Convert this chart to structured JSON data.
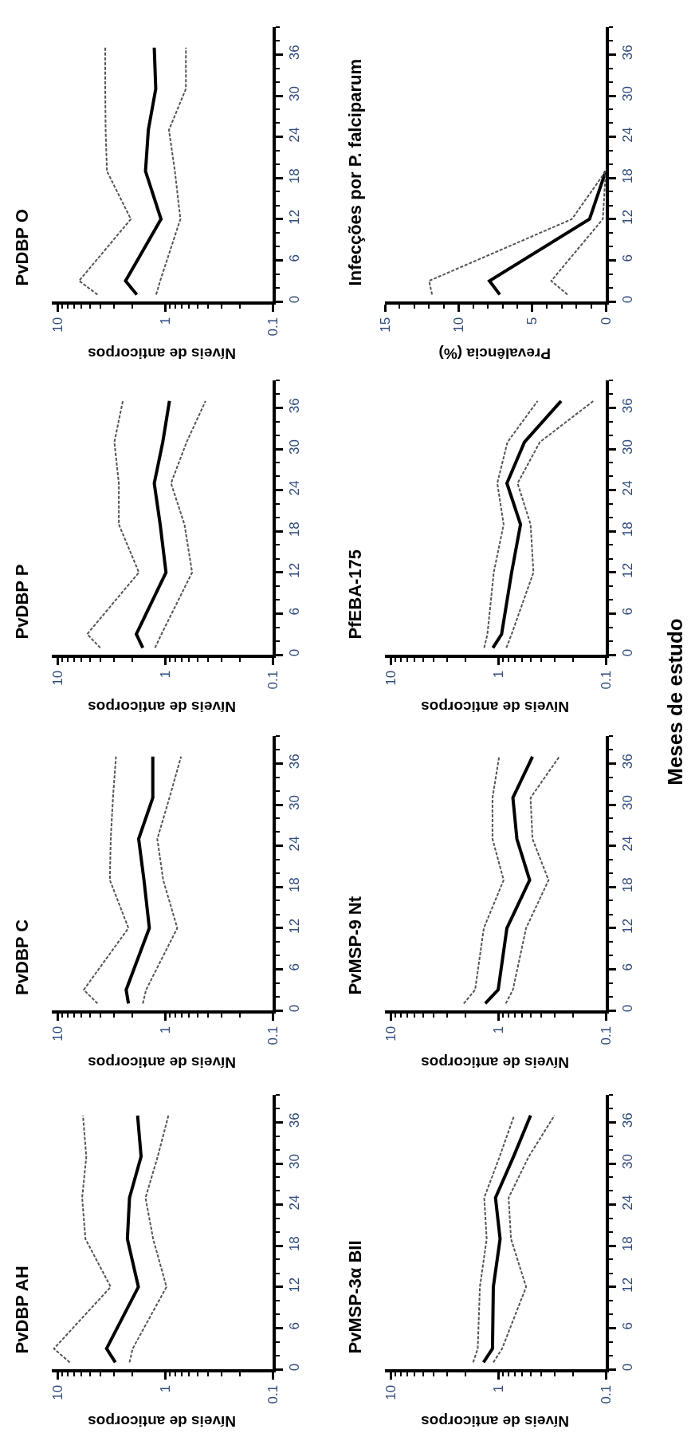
{
  "chart_data": [
    {
      "type": "line",
      "orientation": "horizontal",
      "title": "PvDBP AH",
      "xlabel": "Níveis de anticorpos",
      "x": [
        1,
        3,
        12,
        19,
        25,
        31,
        37
      ],
      "series": [
        {
          "color": "#000000",
          "line_style": "solid",
          "values": [
            2.9,
            3.5,
            1.77,
            2.24,
            2.14,
            1.67,
            1.8
          ]
        },
        {
          "color": "#555555",
          "line_style": "dashed",
          "values": [
            7.7,
            10.8,
            3.2,
            5.5,
            5.9,
            5.4,
            5.8
          ]
        },
        {
          "color": "#555555",
          "line_style": "dashed",
          "values": [
            2.14,
            2.0,
            0.97,
            1.29,
            1.52,
            1.17,
            0.93
          ]
        }
      ],
      "ylim": [
        0,
        40
      ],
      "yticks": [
        0,
        6,
        12,
        18,
        24,
        30,
        36
      ],
      "xlim": [
        11.3,
        0.1
      ],
      "xticks": [
        10,
        1,
        0.1
      ],
      "log": "x"
    },
    {
      "type": "line",
      "orientation": "horizontal",
      "title": "PvDBP C",
      "xlabel": "Níveis de anticorpos",
      "x": [
        1,
        3,
        12,
        19,
        25,
        31,
        37
      ],
      "series": [
        {
          "color": "#000000",
          "line_style": "solid",
          "values": [
            2.19,
            2.3,
            1.4,
            1.57,
            1.76,
            1.3,
            1.3
          ]
        },
        {
          "color": "#555555",
          "line_style": "dashed",
          "values": [
            4.25,
            5.7,
            2.19,
            3.26,
            3.2,
            3.05,
            2.86
          ]
        },
        {
          "color": "#555555",
          "line_style": "dashed",
          "values": [
            1.61,
            1.5,
            0.77,
            1.04,
            1.18,
            0.91,
            0.71
          ]
        }
      ],
      "ylim": [
        0,
        40
      ],
      "yticks": [
        0,
        6,
        12,
        18,
        24,
        30,
        36
      ],
      "xlim": [
        11.3,
        0.1
      ],
      "xticks": [
        10,
        1,
        0.1
      ],
      "log": "x"
    },
    {
      "type": "line",
      "orientation": "horizontal",
      "title": "PvDBP P",
      "xlabel": "Níveis de anticorpos",
      "x": [
        1,
        3,
        12,
        19,
        25,
        31,
        37
      ],
      "series": [
        {
          "color": "#000000",
          "line_style": "solid",
          "values": [
            1.61,
            1.85,
            0.98,
            1.11,
            1.26,
            1.05,
            0.91
          ]
        },
        {
          "color": "#555555",
          "line_style": "dashed",
          "values": [
            4.0,
            5.3,
            1.75,
            2.69,
            2.69,
            2.96,
            2.47
          ]
        },
        {
          "color": "#555555",
          "line_style": "dashed",
          "values": [
            1.24,
            1.08,
            0.56,
            0.66,
            0.88,
            0.63,
            0.42
          ]
        }
      ],
      "ylim": [
        0,
        40
      ],
      "yticks": [
        0,
        6,
        12,
        18,
        24,
        30,
        36
      ],
      "xlim": [
        11.3,
        0.1
      ],
      "xticks": [
        10,
        1,
        0.1
      ],
      "log": "x"
    },
    {
      "type": "line",
      "orientation": "horizontal",
      "title": "PvDBP O",
      "xlabel": "Níveis de anticorpos",
      "x": [
        1,
        3,
        12,
        19,
        25,
        31,
        37
      ],
      "series": [
        {
          "color": "#000000",
          "line_style": "solid",
          "values": [
            1.83,
            2.33,
            1.09,
            1.52,
            1.43,
            1.22,
            1.26
          ]
        },
        {
          "color": "#555555",
          "line_style": "dashed",
          "values": [
            4.25,
            6.3,
            2.08,
            3.47,
            3.57,
            3.6,
            3.6
          ]
        },
        {
          "color": "#555555",
          "line_style": "dashed",
          "values": [
            1.21,
            1.11,
            0.72,
            0.81,
            0.92,
            0.64,
            0.64
          ]
        }
      ],
      "ylim": [
        0,
        40
      ],
      "yticks": [
        0,
        6,
        12,
        18,
        24,
        30,
        36
      ],
      "xlim": [
        11.3,
        0.1
      ],
      "xticks": [
        10,
        1,
        0.1
      ],
      "log": "x"
    },
    {
      "type": "line",
      "orientation": "horizontal",
      "title": "PvMSP-3α BII",
      "xlabel": "Níveis de anticorpos",
      "annotations": [
        "Meses de estudo"
      ],
      "x": [
        1,
        3,
        12,
        19,
        25,
        31,
        37
      ],
      "series": [
        {
          "color": "#000000",
          "line_style": "solid",
          "values": [
            1.37,
            1.13,
            1.11,
            0.96,
            1.06,
            0.72,
            0.5
          ]
        },
        {
          "color": "#555555",
          "line_style": "dashed",
          "values": [
            1.71,
            1.55,
            1.48,
            1.28,
            1.35,
            0.97,
            0.71
          ]
        },
        {
          "color": "#555555",
          "line_style": "dashed",
          "values": [
            1.11,
            0.92,
            0.55,
            0.76,
            0.8,
            0.52,
            0.3
          ]
        }
      ],
      "ylim": [
        0,
        40
      ],
      "yticks": [
        0,
        6,
        12,
        18,
        24,
        30,
        36
      ],
      "xlim": [
        11.3,
        0.1
      ],
      "xticks": [
        10,
        1,
        0.1
      ],
      "log": "x"
    },
    {
      "type": "line",
      "orientation": "horizontal",
      "title": "PvMSP-9 Nt",
      "xlabel": "Níveis de anticorpos",
      "x": [
        1,
        3,
        12,
        19,
        25,
        31,
        37
      ],
      "series": [
        {
          "color": "#000000",
          "line_style": "solid",
          "values": [
            1.32,
            1.0,
            0.83,
            0.51,
            0.67,
            0.73,
            0.48
          ]
        },
        {
          "color": "#555555",
          "line_style": "dashed",
          "values": [
            2.09,
            1.64,
            1.36,
            0.89,
            1.13,
            1.13,
            0.98
          ]
        },
        {
          "color": "#555555",
          "line_style": "dashed",
          "values": [
            0.85,
            0.73,
            0.55,
            0.34,
            0.48,
            0.5,
            0.27
          ]
        }
      ],
      "ylim": [
        0,
        40
      ],
      "yticks": [
        0,
        6,
        12,
        18,
        24,
        30,
        36
      ],
      "xlim": [
        11.3,
        0.1
      ],
      "xticks": [
        10,
        1,
        0.1
      ],
      "log": "x"
    },
    {
      "type": "line",
      "orientation": "horizontal",
      "title": "PfEBA-175",
      "xlabel": "Níveis de anticorpos",
      "x": [
        1,
        3,
        12,
        19,
        25,
        31,
        37
      ],
      "series": [
        {
          "color": "#000000",
          "line_style": "solid",
          "values": [
            1.12,
            0.93,
            0.75,
            0.62,
            0.83,
            0.57,
            0.26
          ]
        },
        {
          "color": "#555555",
          "line_style": "dashed",
          "values": [
            1.35,
            1.26,
            1.1,
            0.89,
            1.02,
            0.82,
            0.43
          ]
        },
        {
          "color": "#555555",
          "line_style": "dashed",
          "values": [
            0.84,
            0.75,
            0.47,
            0.5,
            0.66,
            0.41,
            0.13
          ]
        }
      ],
      "ylim": [
        0,
        40
      ],
      "yticks": [
        0,
        6,
        12,
        18,
        24,
        30,
        36
      ],
      "xlim": [
        11.3,
        0.1
      ],
      "xticks": [
        10,
        1,
        0.1
      ],
      "log": "x"
    },
    {
      "type": "line",
      "orientation": "horizontal",
      "title": "Infecções por P. falciparum",
      "xlabel": "Prevalência (%)",
      "x": [
        1,
        3,
        12,
        19
      ],
      "series": [
        {
          "color": "#000000",
          "line_style": "solid",
          "values": [
            7.2,
            7.9,
            1.1,
            0
          ]
        },
        {
          "color": "#555555",
          "line_style": "dashed",
          "values": [
            11.8,
            12.0,
            2.3,
            0
          ]
        },
        {
          "color": "#555555",
          "line_style": "dashed",
          "values": [
            2.6,
            3.7,
            0.2,
            0
          ]
        }
      ],
      "ylim": [
        0,
        40
      ],
      "yticks": [
        0,
        6,
        12,
        18,
        24,
        30,
        36
      ],
      "xlim": [
        15,
        0
      ],
      "xticks": [
        15,
        10,
        5,
        0
      ]
    }
  ]
}
